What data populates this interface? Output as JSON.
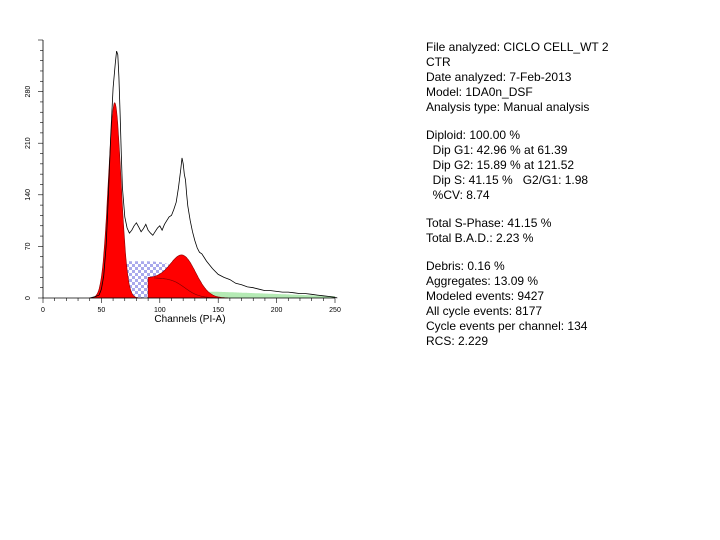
{
  "chart_data": {
    "type": "area",
    "xlabel": "Channels (PI-A)",
    "ylabel": "",
    "xlim": [
      0,
      250
    ],
    "ylim": [
      0,
      350
    ],
    "xticks": [
      "0",
      "50",
      "100",
      "150",
      "200",
      "250"
    ],
    "yticks": [
      "0",
      "70",
      "140",
      "210",
      "280"
    ],
    "grid": false,
    "legend": "none",
    "histogram": {
      "x": [
        40,
        45,
        48,
        50,
        52,
        54,
        56,
        58,
        60,
        62,
        63,
        64,
        65,
        66,
        67,
        68,
        70,
        72,
        74,
        76,
        78,
        80,
        82,
        84,
        86,
        88,
        90,
        92,
        94,
        96,
        98,
        100,
        102,
        104,
        106,
        108,
        110,
        112,
        114,
        116,
        118,
        119,
        120,
        121,
        122,
        123,
        124,
        126,
        128,
        130,
        132,
        134,
        136,
        138,
        140,
        145,
        150,
        155,
        160,
        165,
        170,
        175,
        180,
        185,
        190,
        195,
        200,
        205,
        210,
        215,
        220,
        225,
        230,
        235,
        240,
        245,
        250,
        252
      ],
      "y": [
        0,
        2,
        4,
        12,
        30,
        70,
        140,
        220,
        285,
        320,
        335,
        330,
        300,
        250,
        195,
        150,
        110,
        95,
        88,
        92,
        98,
        102,
        96,
        90,
        94,
        100,
        92,
        88,
        85,
        90,
        95,
        98,
        92,
        100,
        105,
        110,
        112,
        120,
        130,
        150,
        175,
        190,
        182,
        168,
        160,
        140,
        125,
        105,
        90,
        78,
        68,
        62,
        60,
        55,
        50,
        40,
        32,
        28,
        25,
        20,
        18,
        15,
        14,
        12,
        10,
        10,
        9,
        8,
        8,
        7,
        6,
        6,
        5,
        4,
        3,
        2,
        1,
        0
      ]
    },
    "components": [
      {
        "name": "Dip G1",
        "color": "#ff0000",
        "mean": 61.39,
        "sigma": 5.4,
        "peak": 265
      },
      {
        "name": "Dip S",
        "color": "#b8b8ee",
        "from": 61.39,
        "to": 121.52,
        "level": 50
      },
      {
        "name": "Dip G2",
        "color": "#ff0000",
        "mean": 121.52,
        "sigma": 10.7,
        "peak": 43
      },
      {
        "name": "Aggregates",
        "color": "#b4eab4",
        "from": 125,
        "to": 250,
        "level": 10
      }
    ]
  },
  "report": {
    "file_analyzed": "File analyzed: CICLO CELL_WT 2",
    "file_analyzed_cont": "CTR",
    "date_analyzed": "Date analyzed: 7-Feb-2013",
    "model": "Model: 1DA0n_DSF",
    "analysis_type": "Analysis type: Manual analysis",
    "diploid": "Diploid: 100.00 %",
    "dip_g1": "  Dip G1: 42.96 % at 61.39",
    "dip_g2": "  Dip G2: 15.89 % at 121.52",
    "dip_s": "  Dip S: 41.15 %   G2/G1: 1.98",
    "cv": "  %CV: 8.74",
    "total_s_phase": "Total S-Phase: 41.15 %",
    "total_bad": "Total B.A.D.: 2.23 %",
    "debris": "Debris: 0.16 %",
    "aggregates": "Aggregates: 13.09 %",
    "modeled_events": "Modeled events: 9427",
    "all_cycle_events": "All cycle events: 8177",
    "cycle_events_per_channel": "Cycle events per channel: 134",
    "rcs": "RCS: 2.229"
  }
}
